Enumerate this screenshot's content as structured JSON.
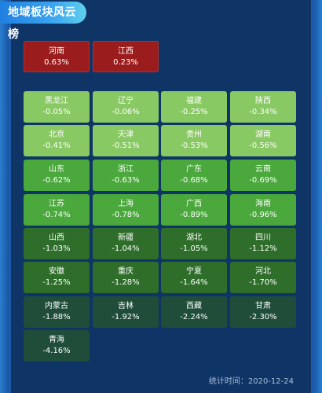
{
  "title": "地域板块风云榜",
  "top_tiles": [
    {
      "name": "河南",
      "pct": "0.63%"
    },
    {
      "name": "江西",
      "pct": "0.23%"
    }
  ],
  "tiles": [
    {
      "name": "黑龙江",
      "pct": "-0.05%"
    },
    {
      "name": "辽宁",
      "pct": "-0.06%"
    },
    {
      "name": "福建",
      "pct": "-0.25%"
    },
    {
      "name": "陕西",
      "pct": "-0.34%"
    },
    {
      "name": "北京",
      "pct": "-0.41%"
    },
    {
      "name": "天津",
      "pct": "-0.51%"
    },
    {
      "name": "贵州",
      "pct": "-0.53%"
    },
    {
      "name": "湖南",
      "pct": "-0.56%"
    },
    {
      "name": "山东",
      "pct": "-0.62%"
    },
    {
      "name": "浙江",
      "pct": "-0.63%"
    },
    {
      "name": "广东",
      "pct": "-0.68%"
    },
    {
      "name": "云南",
      "pct": "-0.69%"
    },
    {
      "name": "江苏",
      "pct": "-0.74%"
    },
    {
      "name": "上海",
      "pct": "-0.78%"
    },
    {
      "name": "广西",
      "pct": "-0.89%"
    },
    {
      "name": "海南",
      "pct": "-0.96%"
    },
    {
      "name": "山西",
      "pct": "-1.03%"
    },
    {
      "name": "新疆",
      "pct": "-1.04%"
    },
    {
      "name": "湖北",
      "pct": "-1.05%"
    },
    {
      "name": "四川",
      "pct": "-1.12%"
    },
    {
      "name": "安徽",
      "pct": "-1.25%"
    },
    {
      "name": "重庆",
      "pct": "-1.28%"
    },
    {
      "name": "宁夏",
      "pct": "-1.64%"
    },
    {
      "name": "河北",
      "pct": "-1.70%"
    },
    {
      "name": "内蒙古",
      "pct": "-1.88%"
    },
    {
      "name": "吉林",
      "pct": "-1.92%"
    },
    {
      "name": "西藏",
      "pct": "-2.24%"
    },
    {
      "name": "甘肃",
      "pct": "-2.30%"
    },
    {
      "name": "青海",
      "pct": "-4.16%"
    }
  ],
  "footer": "统计时间：2020-12-24",
  "colors": {
    "up": "#9b1c1c",
    "down_light": "#89c964",
    "down_medium": "#4aa83c",
    "down_dark": "#2e6e2a",
    "down_darkest": "#1f4d3a"
  }
}
